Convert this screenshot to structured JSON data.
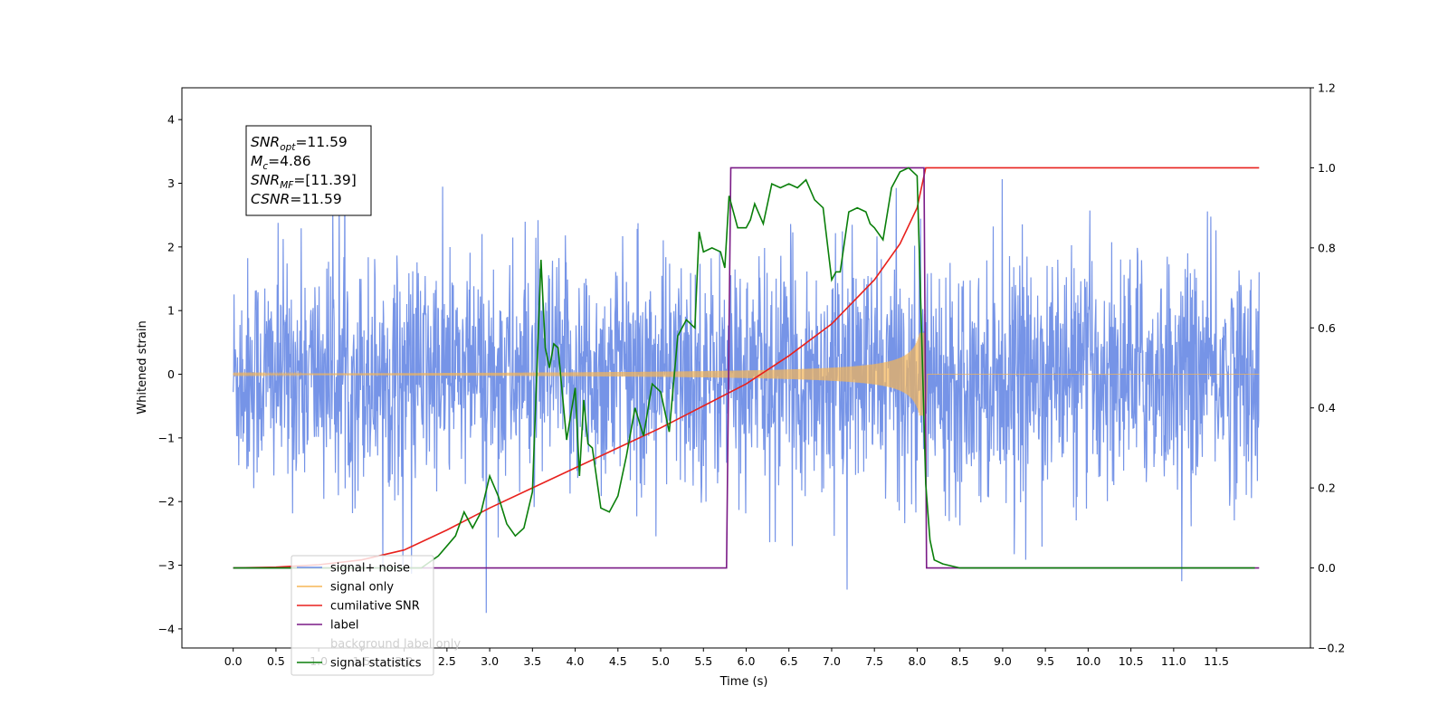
{
  "chart_data": {
    "type": "line",
    "xlabel": "Time (s)",
    "ylabel_left": "Whitened strain",
    "ylabel_right": "",
    "xlim": [
      -0.6,
      12.6
    ],
    "ylim_left": [
      -4.3,
      4.5
    ],
    "ylim_right": [
      -0.2,
      1.2
    ],
    "x_ticks": [
      "0.0",
      "0.5",
      "1.0",
      "1.5",
      "2.0",
      "2.5",
      "3.0",
      "3.5",
      "4.0",
      "4.5",
      "5.0",
      "5.5",
      "6.0",
      "6.5",
      "7.0",
      "7.5",
      "8.0",
      "8.5",
      "9.0",
      "9.5",
      "10.0",
      "10.5",
      "11.0",
      "11.5"
    ],
    "y_ticks_left": [
      "4",
      "3",
      "2",
      "1",
      "0",
      "−1",
      "−2",
      "−3",
      "−4"
    ],
    "y_ticks_right": [
      "1.2",
      "1.0",
      "0.8",
      "0.6",
      "0.4",
      "0.2",
      "0.0",
      "−0.2"
    ],
    "grid": false,
    "legend_position": "lower-left",
    "annotation": {
      "lines": [
        {
          "main": "SNR",
          "sub": "opt",
          "rest": "=11.59"
        },
        {
          "main": "M",
          "sub": "c",
          "rest": "=4.86"
        },
        {
          "main": "SNR",
          "sub": "MF",
          "rest": "=[11.39]"
        },
        {
          "main": "CSNR",
          "sub": "",
          "rest": "=11.59"
        }
      ]
    },
    "series": [
      {
        "name": "signal+ noise",
        "axis": "left",
        "color": "#6f8ee6",
        "kind": "noise",
        "x_range": [
          0.0,
          12.0
        ],
        "approx_std": 0.9,
        "approx_max": 4.1,
        "approx_min": -3.75
      },
      {
        "name": "signal only",
        "axis": "left",
        "color": "#f5b556",
        "kind": "chirp",
        "x_range": [
          0.0,
          8.1
        ],
        "amplitude_start": 0.01,
        "amplitude_peak": 0.65,
        "merger_time": 8.1
      },
      {
        "name": "cumilative SNR",
        "axis": "right",
        "color": "#e8211d",
        "x": [
          0.0,
          0.5,
          1.0,
          1.5,
          2.0,
          2.5,
          3.0,
          3.5,
          4.0,
          4.5,
          5.0,
          5.5,
          6.0,
          6.5,
          7.0,
          7.5,
          7.8,
          8.0,
          8.1,
          12.0
        ],
        "y": [
          0.0,
          0.002,
          0.008,
          0.02,
          0.045,
          0.095,
          0.15,
          0.2,
          0.25,
          0.3,
          0.35,
          0.405,
          0.46,
          0.53,
          0.61,
          0.72,
          0.81,
          0.9,
          1.0,
          1.0
        ]
      },
      {
        "name": "label",
        "axis": "right",
        "color": "#7a1a86",
        "x": [
          0.0,
          5.77,
          5.82,
          8.08,
          8.11,
          12.0
        ],
        "y": [
          0.0,
          0.0,
          1.0,
          1.0,
          0.0,
          0.0
        ]
      },
      {
        "name": "background label only",
        "axis": "right",
        "color": "#7a1a86",
        "hidden": true,
        "x": [],
        "y": []
      },
      {
        "name": "signal statistics",
        "axis": "right",
        "color": "#0a7f0a",
        "x": [
          0.0,
          2.2,
          2.4,
          2.6,
          2.7,
          2.8,
          2.9,
          3.0,
          3.1,
          3.2,
          3.3,
          3.4,
          3.5,
          3.6,
          3.65,
          3.7,
          3.75,
          3.8,
          3.9,
          4.0,
          4.05,
          4.1,
          4.15,
          4.2,
          4.3,
          4.4,
          4.5,
          4.6,
          4.7,
          4.8,
          4.9,
          5.0,
          5.1,
          5.2,
          5.3,
          5.4,
          5.45,
          5.5,
          5.6,
          5.7,
          5.75,
          5.8,
          5.9,
          6.0,
          6.05,
          6.1,
          6.2,
          6.3,
          6.4,
          6.5,
          6.6,
          6.7,
          6.8,
          6.9,
          7.0,
          7.05,
          7.1,
          7.2,
          7.3,
          7.4,
          7.45,
          7.5,
          7.6,
          7.7,
          7.8,
          7.9,
          8.0,
          8.05,
          8.1,
          8.15,
          8.2,
          8.3,
          8.5,
          11.95
        ],
        "y": [
          0.0,
          0.0,
          0.03,
          0.08,
          0.14,
          0.1,
          0.14,
          0.23,
          0.18,
          0.11,
          0.08,
          0.1,
          0.19,
          0.77,
          0.55,
          0.5,
          0.56,
          0.55,
          0.32,
          0.45,
          0.23,
          0.42,
          0.31,
          0.3,
          0.15,
          0.14,
          0.18,
          0.28,
          0.4,
          0.33,
          0.46,
          0.44,
          0.34,
          0.58,
          0.62,
          0.6,
          0.84,
          0.79,
          0.8,
          0.79,
          0.75,
          0.93,
          0.85,
          0.85,
          0.87,
          0.91,
          0.86,
          0.96,
          0.95,
          0.96,
          0.95,
          0.97,
          0.92,
          0.9,
          0.72,
          0.74,
          0.74,
          0.89,
          0.9,
          0.89,
          0.86,
          0.85,
          0.82,
          0.95,
          0.99,
          1.0,
          0.98,
          0.6,
          0.21,
          0.07,
          0.02,
          0.01,
          0.0,
          0.0
        ]
      }
    ],
    "legend_entries": [
      {
        "label": "signal+ noise",
        "color": "#6f8ee6"
      },
      {
        "label": "signal only",
        "color": "#f5b556"
      },
      {
        "label": "cumilative SNR",
        "color": "#e8211d"
      },
      {
        "label": "label",
        "color": "#7a1a86"
      },
      {
        "label": "background label only",
        "color": "#7a1a86"
      },
      {
        "label": "signal statistics",
        "color": "#0a7f0a"
      }
    ]
  }
}
